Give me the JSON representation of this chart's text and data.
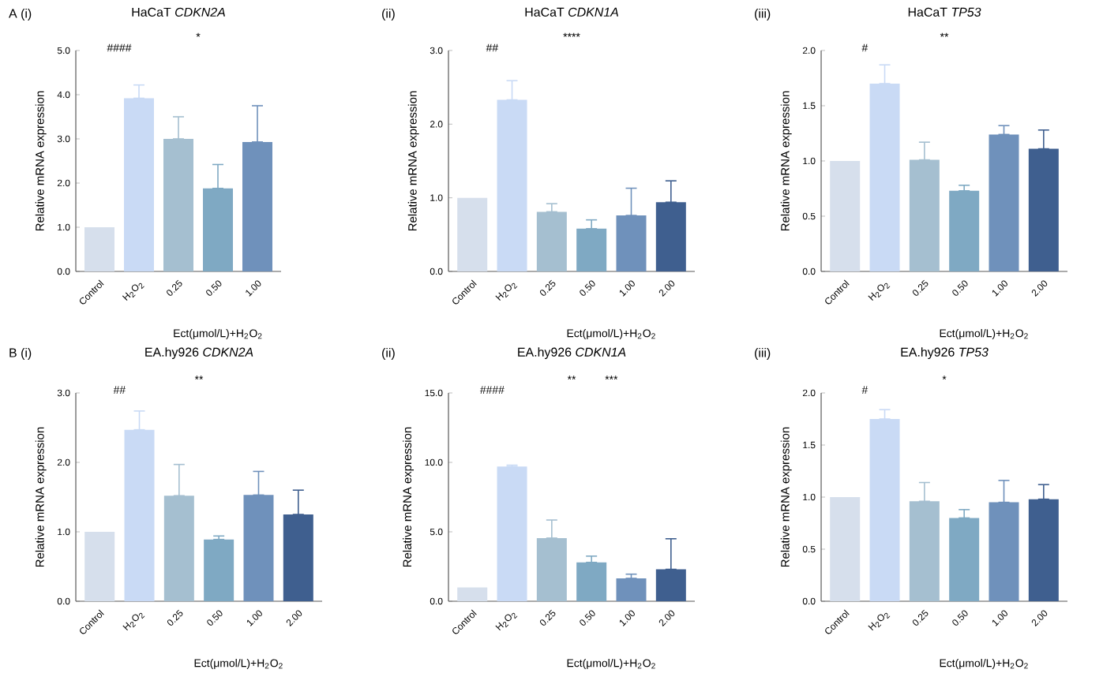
{
  "chart_data": [
    {
      "type": "bar",
      "subtitle": "A (i)",
      "title": "HaCaT *CDKN2A*",
      "ylabel": "Relative mRNA expression",
      "xlabel": "Ect(μmol/L)+H$_{2}$O$_{2}$",
      "categories": [
        "Control",
        "H$_{2}$O$_{2}$",
        "0.25",
        "0.50",
        "1.00"
      ],
      "values": [
        1.0,
        3.92,
        3.0,
        1.88,
        2.93
      ],
      "errors": [
        null,
        [
          3.92,
          4.22
        ],
        [
          3.0,
          3.5
        ],
        [
          1.88,
          2.42
        ],
        [
          2.93,
          3.75
        ]
      ],
      "colors": [
        "#d6dfec",
        "#c9daf5",
        "#a5bfd0",
        "#7fa9c3",
        "#6f91bb"
      ],
      "ylim": [
        0,
        5
      ],
      "yticks": [
        {
          "value": 0,
          "label": "0.0"
        },
        {
          "value": 1,
          "label": "1.0"
        },
        {
          "value": 2,
          "label": "2.0"
        },
        {
          "value": 3,
          "label": "3.0"
        },
        {
          "value": 4,
          "label": "4.0"
        },
        {
          "value": 5,
          "label": "5.0"
        }
      ],
      "annotations": [
        "####",
        "*"
      ]
    },
    {
      "type": "bar",
      "subtitle": "(ii)",
      "title": "HaCaT *CDKN1A*",
      "ylabel": "Relative mRNA expression",
      "xlabel": "Ect(μmol/L)+H$_{2}$O$_{2}$",
      "categories": [
        "Control",
        "H$_{2}$O$_{2}$",
        "0.25",
        "0.50",
        "1.00",
        "2.00"
      ],
      "values": [
        1.0,
        2.33,
        0.81,
        0.58,
        0.76,
        0.94
      ],
      "errors": [
        null,
        [
          2.33,
          2.59
        ],
        [
          0.81,
          0.92
        ],
        [
          0.58,
          0.7
        ],
        [
          0.76,
          1.13
        ],
        [
          0.94,
          1.23
        ]
      ],
      "colors": [
        "#d6dfec",
        "#c9daf5",
        "#a5bfd0",
        "#7fa9c3",
        "#6f91bb",
        "#3f5f8f"
      ],
      "ylim": [
        0,
        3
      ],
      "yticks": [
        {
          "value": 0,
          "label": "0.0"
        },
        {
          "value": 1,
          "label": "1.0"
        },
        {
          "value": 2,
          "label": "2.0"
        },
        {
          "value": 3,
          "label": "3.0"
        }
      ],
      "annotations": [
        "##",
        "****"
      ]
    },
    {
      "type": "bar",
      "subtitle": "(iii)",
      "title": "HaCaT *TP53*",
      "ylabel": "Relative mRNA expression",
      "xlabel": "Ect(μmol/L)+H$_{2}$O$_{2}$",
      "categories": [
        "Control",
        "H$_{2}$O$_{2}$",
        "0.25",
        "0.50",
        "1.00",
        "2.00"
      ],
      "values": [
        1.0,
        1.7,
        1.01,
        0.73,
        1.24,
        1.11
      ],
      "errors": [
        null,
        [
          1.7,
          1.87
        ],
        [
          1.01,
          1.17
        ],
        [
          0.73,
          0.78
        ],
        [
          1.24,
          1.32
        ],
        [
          1.11,
          1.28
        ]
      ],
      "colors": [
        "#d6dfec",
        "#c9daf5",
        "#a5bfd0",
        "#7fa9c3",
        "#6f91bb",
        "#3f5f8f"
      ],
      "ylim": [
        0,
        2
      ],
      "yticks": [
        {
          "value": 0,
          "label": "0.0"
        },
        {
          "value": 0.5,
          "label": "0.5"
        },
        {
          "value": 1,
          "label": "1.0"
        },
        {
          "value": 1.5,
          "label": "1.5"
        },
        {
          "value": 2,
          "label": "2.0"
        }
      ],
      "annotations": [
        "#",
        "**"
      ]
    },
    {
      "type": "bar",
      "subtitle": "B (i)",
      "title": "EA.hy926 *CDKN2A*",
      "ylabel": "Relative mRNA expression",
      "xlabel": "Ect(μmol/L)+H$_{2}$O$_{2}$",
      "categories": [
        "Control",
        "H$_{2}$O$_{2}$",
        "0.25",
        "0.50",
        "1.00",
        "2.00"
      ],
      "values": [
        1.0,
        2.47,
        1.52,
        0.89,
        1.53,
        1.25
      ],
      "errors": [
        null,
        [
          2.47,
          2.74
        ],
        [
          1.52,
          1.97
        ],
        [
          0.89,
          0.94
        ],
        [
          1.53,
          1.87
        ],
        [
          1.25,
          1.6
        ]
      ],
      "colors": [
        "#d6dfec",
        "#c9daf5",
        "#a5bfd0",
        "#7fa9c3",
        "#6f91bb",
        "#3f5f8f"
      ],
      "ylim": [
        0,
        3
      ],
      "yticks": [
        {
          "value": 0,
          "label": "0.0"
        },
        {
          "value": 1,
          "label": "1.0"
        },
        {
          "value": 2,
          "label": "2.0"
        },
        {
          "value": 3,
          "label": "3.0"
        }
      ],
      "annotations": [
        "##",
        "**"
      ]
    },
    {
      "type": "bar",
      "subtitle": "(ii)",
      "title": "EA.hy926 *CDKN1A*",
      "ylabel": "Relative mRNA expression",
      "xlabel": "Ect(μmol/L)+H$_{2}$O$_{2}$",
      "categories": [
        "Control",
        "H$_{2}$O$_{2}$",
        "0.25",
        "0.50",
        "1.00",
        "2.00"
      ],
      "values": [
        1.0,
        9.7,
        4.55,
        2.8,
        1.65,
        2.3
      ],
      "errors": [
        null,
        [
          9.7,
          9.8
        ],
        [
          4.55,
          5.85
        ],
        [
          2.8,
          3.25
        ],
        [
          1.65,
          1.95
        ],
        [
          2.3,
          4.5
        ]
      ],
      "colors": [
        "#d6dfec",
        "#c9daf5",
        "#a5bfd0",
        "#7fa9c3",
        "#6f91bb",
        "#3f5f8f"
      ],
      "ylim": [
        0,
        15
      ],
      "yticks": [
        {
          "value": 0,
          "label": "0.0"
        },
        {
          "value": 5,
          "label": "5.0"
        },
        {
          "value": 10,
          "label": "10.0"
        },
        {
          "value": 15,
          "label": "15.0"
        }
      ],
      "annotations": [
        "####",
        "**",
        "***"
      ]
    },
    {
      "type": "bar",
      "subtitle": "(iii)",
      "title": "EA.hy926 *TP53*",
      "ylabel": "Relative mRNA expression",
      "xlabel": "Ect(μmol/L)+H$_{2}$O$_{2}$",
      "categories": [
        "Control",
        "H$_{2}$O$_{2}$",
        "0.25",
        "0.50",
        "1.00",
        "2.00"
      ],
      "values": [
        1.0,
        1.75,
        0.96,
        0.8,
        0.95,
        0.98
      ],
      "errors": [
        null,
        [
          1.75,
          1.84
        ],
        [
          0.96,
          1.14
        ],
        [
          0.8,
          0.88
        ],
        [
          0.95,
          1.16
        ],
        [
          0.98,
          1.12
        ]
      ],
      "colors": [
        "#d6dfec",
        "#c9daf5",
        "#a5bfd0",
        "#7fa9c3",
        "#6f91bb",
        "#3f5f8f"
      ],
      "ylim": [
        0,
        2
      ],
      "yticks": [
        {
          "value": 0,
          "label": "0.0"
        },
        {
          "value": 0.5,
          "label": "0.5"
        },
        {
          "value": 1,
          "label": "1.0"
        },
        {
          "value": 1.5,
          "label": "1.5"
        },
        {
          "value": 2,
          "label": "2.0"
        }
      ],
      "annotations": [
        "#",
        "*"
      ]
    }
  ]
}
